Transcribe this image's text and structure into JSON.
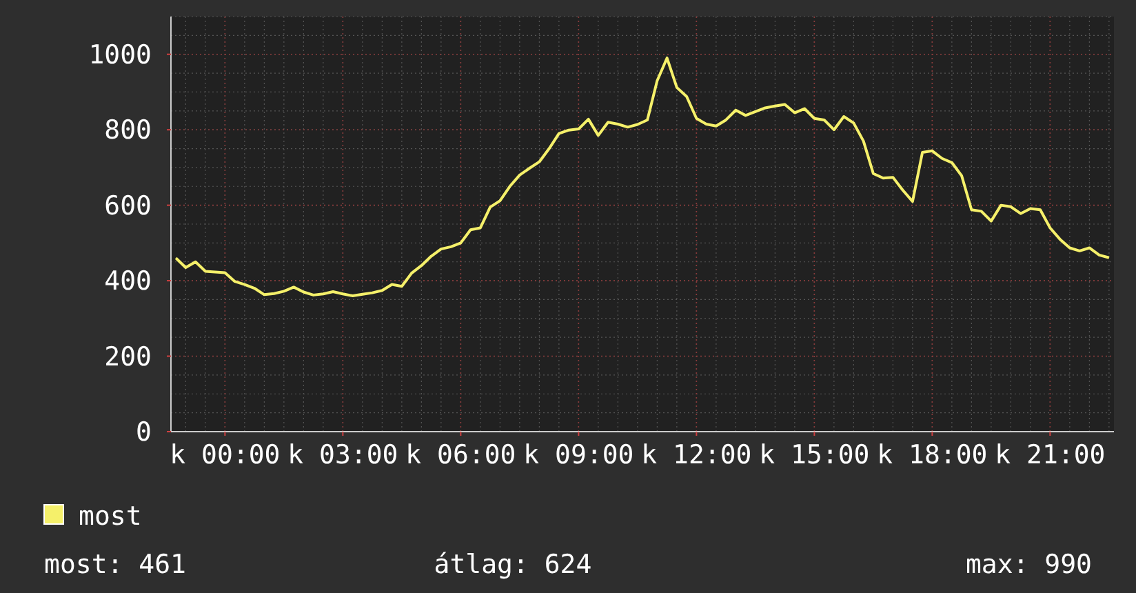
{
  "chart_data": {
    "type": "line",
    "ylim": [
      0,
      1100
    ],
    "categories": [
      null,
      null,
      null,
      null,
      null,
      "k 00:00",
      null,
      null,
      null,
      null,
      null,
      null,
      null,
      null,
      null,
      null,
      null,
      "k 03:00",
      null,
      null,
      null,
      null,
      null,
      null,
      null,
      null,
      null,
      null,
      null,
      "k 06:00",
      null,
      null,
      null,
      null,
      null,
      null,
      null,
      null,
      null,
      null,
      null,
      "k 09:00",
      null,
      null,
      null,
      null,
      null,
      null,
      null,
      null,
      null,
      null,
      null,
      "k 12:00",
      null,
      null,
      null,
      null,
      null,
      null,
      null,
      null,
      null,
      null,
      null,
      "k 15:00",
      null,
      null,
      null,
      null,
      null,
      null,
      null,
      null,
      null,
      null,
      null,
      "k 18:00",
      null,
      null,
      null,
      null,
      null,
      null,
      null,
      null,
      null,
      null,
      null,
      "k 21:00",
      null,
      null,
      null,
      null,
      null,
      null
    ],
    "yticks": [
      0,
      200,
      400,
      600,
      800,
      1000
    ],
    "grid": true,
    "legend": "bottom left",
    "marker": "none",
    "line_style": "solid",
    "annotations": [
      "most: 461",
      "átlag: 624",
      "max: 990"
    ],
    "series": [
      {
        "name": "most",
        "color": "#f5f06a",
        "values": [
          460,
          435,
          450,
          425,
          423,
          421,
          398,
          390,
          380,
          363,
          366,
          372,
          383,
          370,
          362,
          365,
          371,
          365,
          360,
          364,
          368,
          374,
          390,
          385,
          420,
          440,
          465,
          484,
          490,
          500,
          535,
          540,
          595,
          612,
          650,
          680,
          698,
          715,
          750,
          790,
          799,
          802,
          828,
          785,
          820,
          815,
          807,
          814,
          826,
          930,
          990,
          912,
          888,
          830,
          815,
          810,
          826,
          852,
          838,
          848,
          858,
          863,
          867,
          845,
          856,
          830,
          826,
          800,
          835,
          818,
          770,
          684,
          672,
          674,
          640,
          610,
          740,
          744,
          724,
          713,
          678,
          588,
          584,
          558,
          600,
          596,
          578,
          591,
          588,
          540,
          510,
          487,
          479,
          487,
          468,
          461
        ]
      }
    ]
  }
}
